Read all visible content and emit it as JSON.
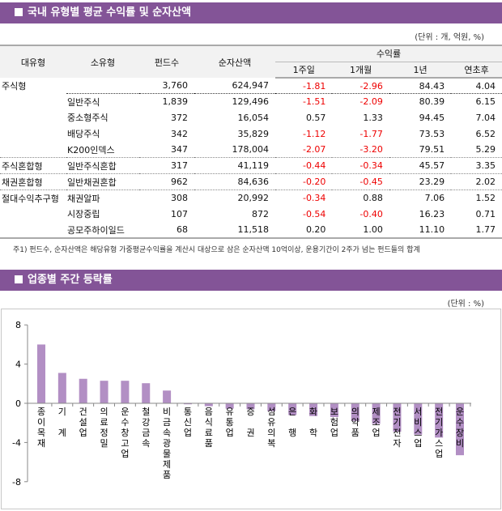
{
  "section1": {
    "title": "국내 유형별 평균 수익률 및 순자산액",
    "unit": "(단위 : 개, 억원, %)"
  },
  "table": {
    "headers": {
      "major": "대유형",
      "minor": "소유형",
      "funds": "펀드수",
      "assets": "순자산액",
      "returns": "수익률",
      "w1": "1주일",
      "m1": "1개월",
      "y1": "1년",
      "ytd": "연초후"
    },
    "rows": [
      {
        "major": "주식형",
        "minor": "",
        "funds": "3,760",
        "assets": "624,947",
        "w1": "-1.81",
        "m1": "-2.96",
        "y1": "84.43",
        "ytd": "4.04"
      },
      {
        "major": "",
        "minor": "일반주식",
        "funds": "1,839",
        "assets": "129,496",
        "w1": "-1.51",
        "m1": "-2.09",
        "y1": "80.39",
        "ytd": "6.15"
      },
      {
        "major": "",
        "minor": "중소형주식",
        "funds": "372",
        "assets": "16,054",
        "w1": "0.57",
        "m1": "1.33",
        "y1": "94.45",
        "ytd": "7.04"
      },
      {
        "major": "",
        "minor": "배당주식",
        "funds": "342",
        "assets": "35,829",
        "w1": "-1.12",
        "m1": "-1.77",
        "y1": "73.53",
        "ytd": "6.52"
      },
      {
        "major": "",
        "minor": "K200인덱스",
        "funds": "347",
        "assets": "178,004",
        "w1": "-2.07",
        "m1": "-3.20",
        "y1": "79.51",
        "ytd": "5.29"
      },
      {
        "major": "주식혼합형",
        "minor": "일반주식혼합",
        "funds": "317",
        "assets": "41,119",
        "w1": "-0.44",
        "m1": "-0.34",
        "y1": "45.57",
        "ytd": "3.35"
      },
      {
        "major": "채권혼합형",
        "minor": "일반채권혼합",
        "funds": "962",
        "assets": "84,636",
        "w1": "-0.20",
        "m1": "-0.45",
        "y1": "23.29",
        "ytd": "2.02"
      },
      {
        "major": "절대수익추구형",
        "minor": "채권알파",
        "funds": "308",
        "assets": "20,992",
        "w1": "-0.34",
        "m1": "0.88",
        "y1": "7.06",
        "ytd": "1.52"
      },
      {
        "major": "",
        "minor": "시장중립",
        "funds": "107",
        "assets": "872",
        "w1": "-0.54",
        "m1": "-0.40",
        "y1": "16.23",
        "ytd": "0.71"
      },
      {
        "major": "",
        "minor": "공모주하이일드",
        "funds": "68",
        "assets": "11,518",
        "w1": "0.20",
        "m1": "1.00",
        "y1": "11.10",
        "ytd": "1.77"
      }
    ],
    "note": "주1) 펀드수, 순자산액은 해당유형 가중평균수익률을 계산시 대상으로 삼은 순자산액 10억이상, 운용기간이 2주가 넘는 펀드들의 합계"
  },
  "section2": {
    "title": "업종별 주간 등락률",
    "unit": "(단위 : %)"
  },
  "colors": {
    "header": "#835497",
    "bar": "#b28fc4",
    "negative": "#e00000"
  },
  "chart_data": {
    "type": "bar",
    "categories": [
      "종이목재",
      "기계",
      "건설업",
      "의료정밀",
      "운수창고업",
      "철강금속",
      "비금속광물제품",
      "통신업",
      "음식료품",
      "유통업",
      "증권",
      "섬유의복",
      "은행",
      "화학",
      "보험업",
      "의약품",
      "제조업",
      "전기전자",
      "서비스업",
      "전기가스업",
      "운수장비"
    ],
    "labels": [
      "종이목재",
      "기 계",
      "건설업",
      "의료정밀",
      "운수창고업",
      "철강금속",
      "비금속광물제품",
      "통신업",
      "음식료품",
      "유통업",
      "증 권",
      "섬유의복",
      "은 행",
      "화 학",
      "보험업",
      "의약품",
      "제조업",
      "전기전자",
      "서비스업",
      "전기가스업",
      "운수장비"
    ],
    "values": [
      6.0,
      3.1,
      2.5,
      2.3,
      2.3,
      2.05,
      1.3,
      -0.1,
      -0.3,
      -0.55,
      -0.6,
      -0.8,
      -1.2,
      -1.3,
      -1.4,
      -1.8,
      -2.1,
      -2.9,
      -3.2,
      -3.5,
      -5.3
    ],
    "yticks": [
      "8",
      "4",
      "0",
      "-4",
      "-8"
    ],
    "ylim": [
      -8,
      8
    ],
    "grid": false,
    "legend": "none"
  }
}
